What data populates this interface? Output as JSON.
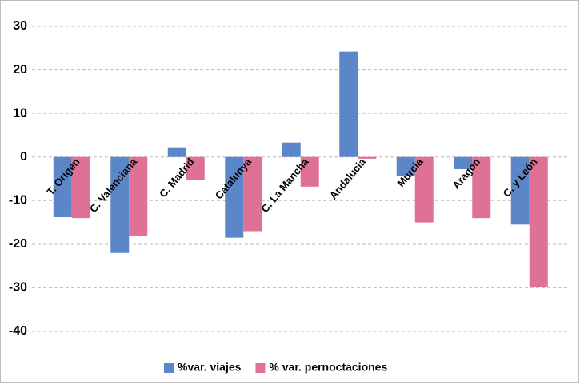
{
  "chart_data": {
    "type": "bar",
    "categories": [
      "T. Origen",
      "C. Valenciana",
      "C. Madrid",
      "Catalunya",
      "C. La Mancha",
      "Andalucia",
      "Murcia",
      "Aragon",
      "C. y León"
    ],
    "series": [
      {
        "name": "%var. viajes",
        "color": "#5b87c8",
        "values": [
          -13.8,
          -22,
          2.2,
          -18.5,
          3.3,
          24.2,
          -4.4,
          -2.8,
          -15.5
        ]
      },
      {
        "name": "% var. pernoctaciones",
        "color": "#e07196",
        "values": [
          -14,
          -18,
          -5.2,
          -17,
          -6.8,
          -0.4,
          -15,
          -14,
          -29.8
        ]
      }
    ],
    "ylim": [
      -40,
      30
    ],
    "yticks": [
      -40,
      -30,
      -20,
      -10,
      0,
      10,
      20,
      30
    ],
    "grid": true,
    "legend": "bottom"
  }
}
